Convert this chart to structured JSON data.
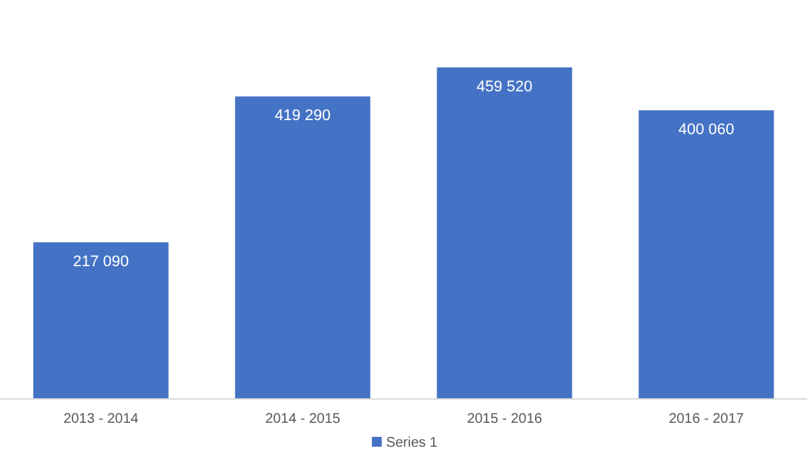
{
  "chart_data": {
    "type": "bar",
    "categories": [
      "2013 - 2014",
      "2014 - 2015",
      "2015 - 2016",
      "2016 - 2017"
    ],
    "series": [
      {
        "name": "Series 1",
        "color": "#4472c4",
        "values": [
          217090,
          419290,
          459520,
          400060
        ]
      }
    ],
    "data_labels": true,
    "legend": "bottom",
    "grid": false
  }
}
